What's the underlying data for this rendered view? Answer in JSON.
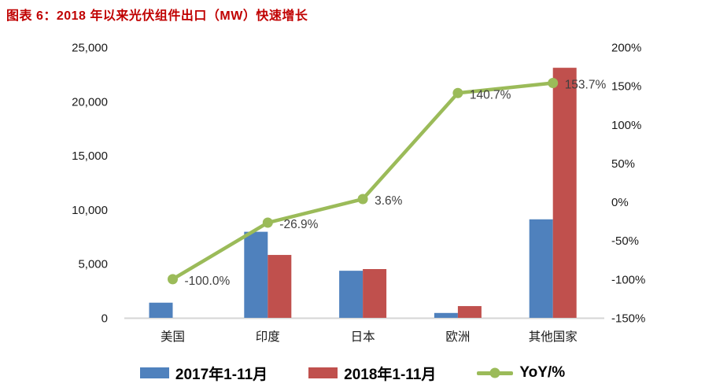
{
  "title": "图表 6：2018 年以来光伏组件出口（MW）快速增长",
  "colors": {
    "title": "#C00000",
    "bar_2017": "#4F81BD",
    "bar_2018": "#C0504D",
    "line_yoy": "#9BBB59",
    "axis_text": "#1a1a1a",
    "data_label": "#3F3F3F",
    "baseline": "#D6D6D6"
  },
  "chart_data": {
    "type": "bar",
    "subtype": "grouped-bars-with-line",
    "categories": [
      "美国",
      "印度",
      "日本",
      "欧洲",
      "其他国家"
    ],
    "bar_series": [
      {
        "name": "2017年1-11月",
        "color": "#4F81BD",
        "axis": "left",
        "values": [
          1400,
          7950,
          4350,
          450,
          9100
        ]
      },
      {
        "name": "2018年1-11月",
        "color": "#C0504D",
        "axis": "left",
        "values": [
          0,
          5810,
          4505,
          1085,
          23100
        ]
      }
    ],
    "line_series": {
      "name": "YoY/%",
      "color": "#9BBB59",
      "axis": "right",
      "values": [
        -100.0,
        -26.9,
        3.6,
        140.7,
        153.7
      ],
      "labels": [
        "-100.0%",
        "-26.9%",
        "3.6%",
        "140.7%",
        "153.7%"
      ]
    },
    "left_axis": {
      "min": 0,
      "max": 25000,
      "ticks": [
        "25,000",
        "20,000",
        "15,000",
        "10,000",
        "5,000",
        "0"
      ]
    },
    "right_axis": {
      "min": -150,
      "max": 200,
      "ticks": [
        "200%",
        "150%",
        "100%",
        "50%",
        "0%",
        "-50%",
        "-100%",
        "-150%"
      ]
    },
    "grid": false,
    "legend_position": "bottom"
  }
}
